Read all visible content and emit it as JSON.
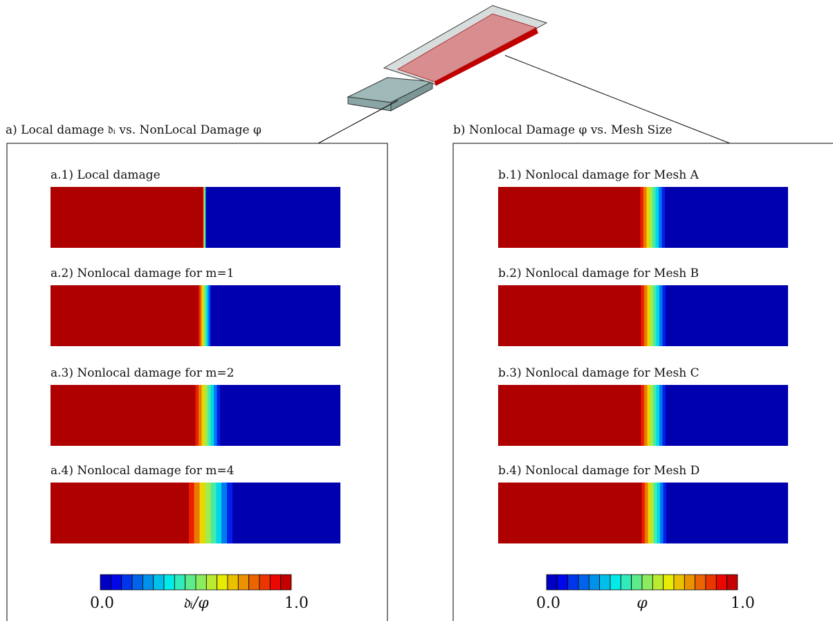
{
  "panels": [
    {
      "title": "a) Local damage 𝔡ᵢ vs. NonLocal Damage φ",
      "plots": [
        "a.1) Local damage",
        "a.2) Nonlocal damage for m=1",
        "a.3) Nonlocal damage for m=2",
        "a.4) Nonlocal damage for m=4"
      ],
      "colorbar": {
        "min": "0.0",
        "label": "𝔡ᵢ/φ",
        "max": "1.0"
      }
    },
    {
      "title": "b) Nonlocal Damage φ vs. Mesh Size",
      "plots": [
        "b.1) Nonlocal damage for Mesh A",
        "b.2) Nonlocal damage for Mesh B",
        "b.3) Nonlocal damage for Mesh C",
        "b.4) Nonlocal damage for Mesh D"
      ],
      "colorbar": {
        "min": "0.0",
        "label": "φ",
        "max": "1.0"
      }
    }
  ]
}
